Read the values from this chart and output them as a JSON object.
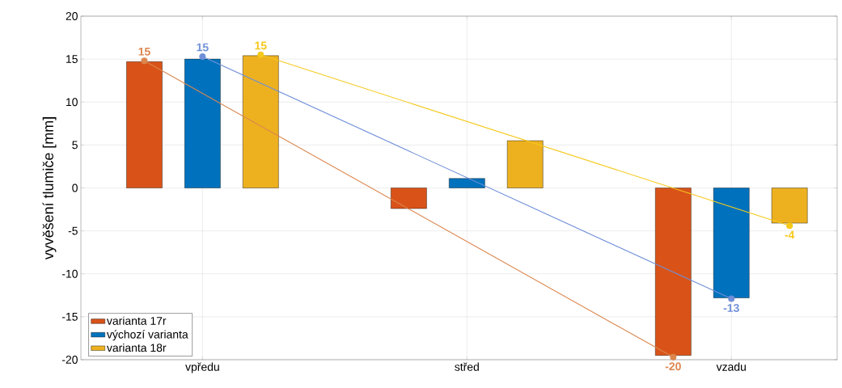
{
  "chart_data": {
    "type": "bar",
    "ylabel": "vyvěšení tlumiče [mm]",
    "categories": [
      "vpředu",
      "střed",
      "vzadu"
    ],
    "series": [
      {
        "name": "varianta 17r",
        "color": "#d95319",
        "values": [
          14.7,
          -2.4,
          -19.5
        ]
      },
      {
        "name": "výchozí varianta",
        "color": "#0072bd",
        "values": [
          15,
          1.1,
          -12.8
        ]
      },
      {
        "name": "varianta 18r",
        "color": "#edb120",
        "values": [
          15.4,
          5.5,
          -4.1
        ]
      },
      {
        "type": "line",
        "marker": "circle",
        "color": "#dc864e",
        "x": [
          "vpředu",
          "vzadu"
        ],
        "values": [
          14.8,
          -19.7
        ],
        "value_labels": [
          "15",
          "-20"
        ]
      },
      {
        "type": "line",
        "marker": "circle",
        "color": "#6f8fd8",
        "x": [
          "vpředu",
          "vzadu"
        ],
        "values": [
          15.3,
          -12.9
        ],
        "value_labels": [
          "15",
          "-13"
        ]
      },
      {
        "type": "line",
        "marker": "circle",
        "color": "#f5c91c",
        "x": [
          "vpředu",
          "vzadu"
        ],
        "values": [
          15.5,
          -4.4
        ],
        "value_labels": [
          "15",
          "-4"
        ]
      }
    ],
    "ylim": [
      -20,
      20
    ],
    "yticks": [
      -20,
      -15,
      -10,
      -5,
      0,
      5,
      10,
      15,
      20
    ],
    "grid": true,
    "legend": "bottom left"
  }
}
